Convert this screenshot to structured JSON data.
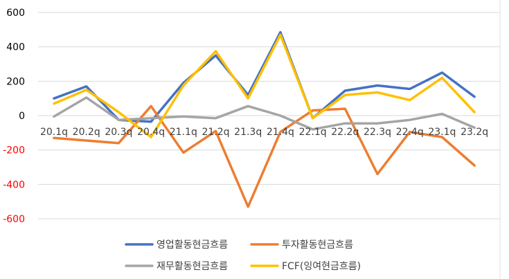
{
  "chart_data": {
    "type": "line",
    "categories": [
      "20.1q",
      "20.2q",
      "20.3q",
      "20.4q",
      "21.1q",
      "21.2q",
      "21.3q",
      "21.4q",
      "22.1q",
      "22.2q",
      "22.3q",
      "22.4q",
      "23.1q",
      "23.2q"
    ],
    "yticks": [
      "600",
      "400",
      "200",
      "0",
      "-200",
      "-400",
      "-600"
    ],
    "ylim": [
      -600,
      600
    ],
    "grid": true,
    "legend_position": "bottom",
    "series": [
      {
        "name": "영업활동현금흐름",
        "color": "#4472C4",
        "values": [
          100,
          170,
          -25,
          -35,
          190,
          350,
          120,
          485,
          -15,
          145,
          175,
          155,
          250,
          110
        ]
      },
      {
        "name": "투자활동현금흐름",
        "color": "#ED7D31",
        "values": [
          -130,
          -145,
          -160,
          55,
          -215,
          -90,
          -530,
          -95,
          30,
          40,
          -340,
          -95,
          -125,
          -290
        ]
      },
      {
        "name": "재무활동현금흐름",
        "color": "#A5A5A5",
        "values": [
          -5,
          105,
          -25,
          -15,
          -5,
          -15,
          55,
          0,
          -80,
          -45,
          -45,
          -25,
          10,
          -70
        ]
      },
      {
        "name": "FCF(잉여현금흐름)",
        "color": "#FFC000",
        "values": [
          70,
          150,
          20,
          -125,
          175,
          375,
          100,
          470,
          -15,
          120,
          135,
          90,
          220,
          20
        ]
      }
    ]
  }
}
